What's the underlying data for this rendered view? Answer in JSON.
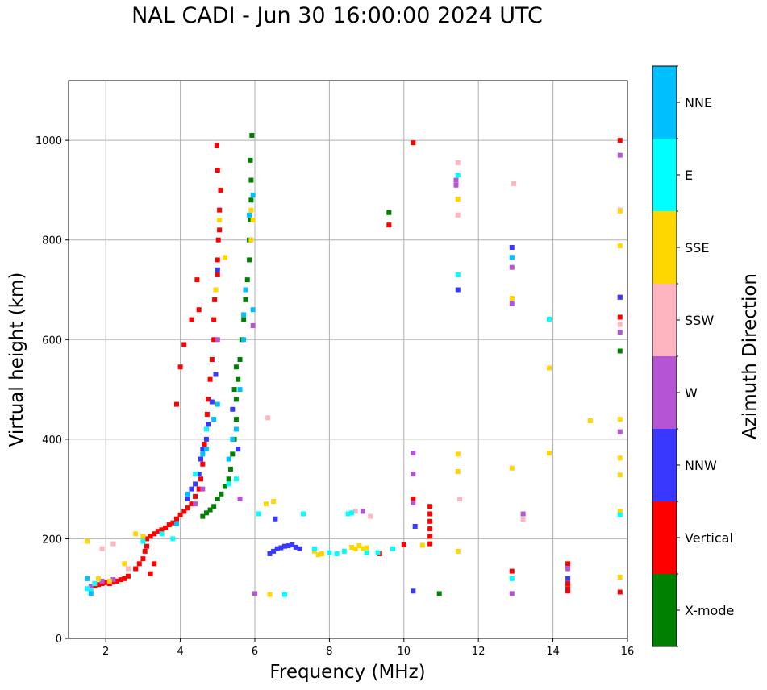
{
  "chart_data": {
    "type": "scatter",
    "title": "NAL CADI - Jun 30 16:00:00 2024 UTC",
    "xlabel": "Frequency (MHz)",
    "ylabel": "Virtual height (km)",
    "xlim": [
      1,
      16
    ],
    "ylim": [
      0,
      1120
    ],
    "xticks": [
      2,
      4,
      6,
      8,
      10,
      12,
      14,
      16
    ],
    "yticks": [
      0,
      200,
      400,
      600,
      800,
      1000
    ],
    "grid": true,
    "colorbar": {
      "title": "Azimuth Direction",
      "categories": [
        {
          "label": "X-mode",
          "color": "#008000"
        },
        {
          "label": "Vertical",
          "color": "#ff0000"
        },
        {
          "label": "NNW",
          "color": "#3838ff"
        },
        {
          "label": "W",
          "color": "#b555d6"
        },
        {
          "label": "SSW",
          "color": "#ffb5c0"
        },
        {
          "label": "SSE",
          "color": "#ffd700"
        },
        {
          "label": "E",
          "color": "#00ffff"
        },
        {
          "label": "NNE",
          "color": "#00bfff"
        }
      ]
    },
    "series": [
      {
        "name": "Vertical",
        "color": "#ff0000",
        "points": [
          [
            1.7,
            105
          ],
          [
            1.8,
            108
          ],
          [
            1.9,
            110
          ],
          [
            2.0,
            112
          ],
          [
            2.1,
            110
          ],
          [
            2.2,
            113
          ],
          [
            2.3,
            115
          ],
          [
            2.4,
            118
          ],
          [
            2.5,
            120
          ],
          [
            2.6,
            125
          ],
          [
            2.8,
            140
          ],
          [
            2.9,
            150
          ],
          [
            3.0,
            160
          ],
          [
            3.05,
            175
          ],
          [
            3.1,
            185
          ],
          [
            3.1,
            200
          ],
          [
            3.2,
            205
          ],
          [
            3.3,
            210
          ],
          [
            3.4,
            215
          ],
          [
            3.5,
            218
          ],
          [
            3.6,
            222
          ],
          [
            3.7,
            228
          ],
          [
            3.8,
            232
          ],
          [
            3.9,
            240
          ],
          [
            4.0,
            248
          ],
          [
            4.1,
            255
          ],
          [
            4.2,
            262
          ],
          [
            4.3,
            270
          ],
          [
            4.4,
            285
          ],
          [
            4.5,
            300
          ],
          [
            4.55,
            320
          ],
          [
            4.6,
            350
          ],
          [
            4.65,
            390
          ],
          [
            4.7,
            420
          ],
          [
            4.72,
            450
          ],
          [
            4.75,
            480
          ],
          [
            4.8,
            520
          ],
          [
            4.85,
            560
          ],
          [
            4.9,
            600
          ],
          [
            4.9,
            640
          ],
          [
            4.92,
            680
          ],
          [
            4.95,
            700
          ],
          [
            5.0,
            730
          ],
          [
            5.0,
            760
          ],
          [
            5.02,
            800
          ],
          [
            5.05,
            820
          ],
          [
            5.05,
            860
          ],
          [
            5.08,
            900
          ],
          [
            5.0,
            940
          ],
          [
            4.98,
            990
          ],
          [
            4.0,
            545
          ],
          [
            4.1,
            590
          ],
          [
            3.9,
            470
          ],
          [
            3.2,
            130
          ],
          [
            3.3,
            150
          ],
          [
            4.3,
            640
          ],
          [
            4.45,
            720
          ],
          [
            4.5,
            660
          ],
          [
            10.7,
            190
          ],
          [
            10.7,
            205
          ],
          [
            10.7,
            220
          ],
          [
            10.7,
            235
          ],
          [
            10.7,
            250
          ],
          [
            10.7,
            265
          ],
          [
            10.25,
            280
          ],
          [
            9.6,
            830
          ],
          [
            10.25,
            995
          ],
          [
            12.9,
            135
          ],
          [
            14.4,
            95
          ],
          [
            14.4,
            100
          ],
          [
            14.4,
            110
          ],
          [
            14.4,
            150
          ],
          [
            15.8,
            93
          ],
          [
            15.8,
            685
          ],
          [
            15.8,
            645
          ],
          [
            15.8,
            1000
          ],
          [
            9.35,
            170
          ],
          [
            10.0,
            188
          ]
        ]
      },
      {
        "name": "X-mode",
        "color": "#008000",
        "points": [
          [
            4.6,
            245
          ],
          [
            4.7,
            252
          ],
          [
            4.8,
            258
          ],
          [
            4.9,
            265
          ],
          [
            5.0,
            280
          ],
          [
            5.1,
            290
          ],
          [
            5.2,
            305
          ],
          [
            5.3,
            320
          ],
          [
            5.35,
            340
          ],
          [
            5.4,
            370
          ],
          [
            5.45,
            400
          ],
          [
            5.5,
            440
          ],
          [
            5.5,
            480
          ],
          [
            5.55,
            520
          ],
          [
            5.6,
            560
          ],
          [
            5.65,
            600
          ],
          [
            5.7,
            640
          ],
          [
            5.75,
            680
          ],
          [
            5.8,
            720
          ],
          [
            5.85,
            760
          ],
          [
            5.85,
            800
          ],
          [
            5.88,
            840
          ],
          [
            5.9,
            880
          ],
          [
            5.9,
            920
          ],
          [
            5.88,
            960
          ],
          [
            5.92,
            1010
          ],
          [
            5.45,
            500
          ],
          [
            5.5,
            545
          ],
          [
            9.6,
            855
          ],
          [
            10.95,
            90
          ],
          [
            15.8,
            577
          ]
        ]
      },
      {
        "name": "NNW",
        "color": "#3838ff",
        "points": [
          [
            4.2,
            280
          ],
          [
            4.3,
            300
          ],
          [
            4.4,
            310
          ],
          [
            4.5,
            330
          ],
          [
            4.55,
            360
          ],
          [
            4.6,
            380
          ],
          [
            4.7,
            400
          ],
          [
            4.75,
            430
          ],
          [
            4.85,
            475
          ],
          [
            4.95,
            530
          ],
          [
            5.0,
            740
          ],
          [
            5.4,
            460
          ],
          [
            5.55,
            380
          ],
          [
            6.4,
            170
          ],
          [
            6.5,
            175
          ],
          [
            6.6,
            180
          ],
          [
            6.7,
            182
          ],
          [
            6.8,
            185
          ],
          [
            6.9,
            186
          ],
          [
            7.0,
            188
          ],
          [
            7.1,
            183
          ],
          [
            7.2,
            180
          ],
          [
            6.55,
            240
          ],
          [
            10.25,
            95
          ],
          [
            12.9,
            785
          ],
          [
            11.45,
            700
          ],
          [
            15.8,
            685
          ],
          [
            14.4,
            120
          ],
          [
            10.3,
            225
          ]
        ]
      },
      {
        "name": "W",
        "color": "#b555d6",
        "points": [
          [
            1.6,
            105
          ],
          [
            1.9,
            115
          ],
          [
            2.2,
            118
          ],
          [
            4.6,
            300
          ],
          [
            4.4,
            270
          ],
          [
            5.0,
            600
          ],
          [
            5.6,
            280
          ],
          [
            5.95,
            628
          ],
          [
            8.9,
            255
          ],
          [
            10.25,
            372
          ],
          [
            10.25,
            330
          ],
          [
            10.25,
            272
          ],
          [
            11.4,
            910
          ],
          [
            11.4,
            920
          ],
          [
            12.9,
            672
          ],
          [
            12.9,
            745
          ],
          [
            12.9,
            90
          ],
          [
            13.2,
            250
          ],
          [
            14.4,
            140
          ],
          [
            15.8,
            415
          ],
          [
            15.8,
            615
          ],
          [
            15.8,
            970
          ],
          [
            6.0,
            90
          ]
        ]
      },
      {
        "name": "SSW",
        "color": "#ffb5c0",
        "points": [
          [
            1.9,
            180
          ],
          [
            2.2,
            190
          ],
          [
            2.6,
            140
          ],
          [
            6.35,
            443
          ],
          [
            8.7,
            255
          ],
          [
            9.1,
            245
          ],
          [
            11.45,
            955
          ],
          [
            11.45,
            850
          ],
          [
            11.5,
            280
          ],
          [
            12.95,
            913
          ],
          [
            13.2,
            238
          ],
          [
            15.8,
            630
          ],
          [
            15.8,
            860
          ]
        ]
      },
      {
        "name": "SSE",
        "color": "#ffd700",
        "points": [
          [
            1.5,
            195
          ],
          [
            1.8,
            120
          ],
          [
            2.1,
            115
          ],
          [
            2.5,
            150
          ],
          [
            2.8,
            210
          ],
          [
            3.0,
            205
          ],
          [
            4.95,
            700
          ],
          [
            5.05,
            840
          ],
          [
            5.2,
            765
          ],
          [
            5.9,
            800
          ],
          [
            5.95,
            840
          ],
          [
            5.9,
            860
          ],
          [
            6.3,
            270
          ],
          [
            6.5,
            275
          ],
          [
            6.4,
            88
          ],
          [
            7.6,
            175
          ],
          [
            7.7,
            168
          ],
          [
            7.8,
            170
          ],
          [
            8.6,
            183
          ],
          [
            8.7,
            180
          ],
          [
            8.8,
            186
          ],
          [
            8.9,
            180
          ],
          [
            9.0,
            182
          ],
          [
            10.5,
            187
          ],
          [
            11.45,
            882
          ],
          [
            11.45,
            370
          ],
          [
            11.45,
            335
          ],
          [
            11.45,
            175
          ],
          [
            12.9,
            342
          ],
          [
            12.9,
            683
          ],
          [
            13.9,
            372
          ],
          [
            13.9,
            543
          ],
          [
            15.0,
            437
          ],
          [
            15.8,
            123
          ],
          [
            15.8,
            250
          ],
          [
            15.8,
            255
          ],
          [
            15.8,
            328
          ],
          [
            15.8,
            362
          ],
          [
            15.8,
            440
          ],
          [
            15.8,
            788
          ],
          [
            15.8,
            858
          ]
        ]
      },
      {
        "name": "E",
        "color": "#00ffff",
        "points": [
          [
            1.5,
            100
          ],
          [
            1.6,
            95
          ],
          [
            1.7,
            110
          ],
          [
            3.0,
            195
          ],
          [
            3.5,
            210
          ],
          [
            3.8,
            200
          ],
          [
            4.4,
            330
          ],
          [
            4.7,
            420
          ],
          [
            5.3,
            310
          ],
          [
            5.5,
            320
          ],
          [
            6.1,
            250
          ],
          [
            6.8,
            88
          ],
          [
            7.3,
            250
          ],
          [
            7.6,
            180
          ],
          [
            8.0,
            172
          ],
          [
            8.2,
            170
          ],
          [
            8.4,
            175
          ],
          [
            8.5,
            250
          ],
          [
            8.6,
            252
          ],
          [
            9.0,
            172
          ],
          [
            9.3,
            172
          ],
          [
            9.7,
            180
          ],
          [
            11.45,
            930
          ],
          [
            11.45,
            730
          ],
          [
            12.9,
            120
          ],
          [
            12.9,
            765
          ],
          [
            13.9,
            641
          ],
          [
            15.8,
            248
          ]
        ]
      },
      {
        "name": "NNE",
        "color": "#00bfff",
        "points": [
          [
            1.5,
            120
          ],
          [
            1.6,
            90
          ],
          [
            3.9,
            230
          ],
          [
            4.2,
            290
          ],
          [
            4.6,
            370
          ],
          [
            4.7,
            380
          ],
          [
            4.9,
            440
          ],
          [
            5.0,
            470
          ],
          [
            5.3,
            360
          ],
          [
            5.4,
            400
          ],
          [
            5.5,
            420
          ],
          [
            5.6,
            500
          ],
          [
            5.7,
            600
          ],
          [
            5.7,
            650
          ],
          [
            5.75,
            700
          ],
          [
            5.85,
            850
          ],
          [
            5.95,
            890
          ],
          [
            5.95,
            660
          ],
          [
            12.9,
            765
          ]
        ]
      }
    ]
  }
}
